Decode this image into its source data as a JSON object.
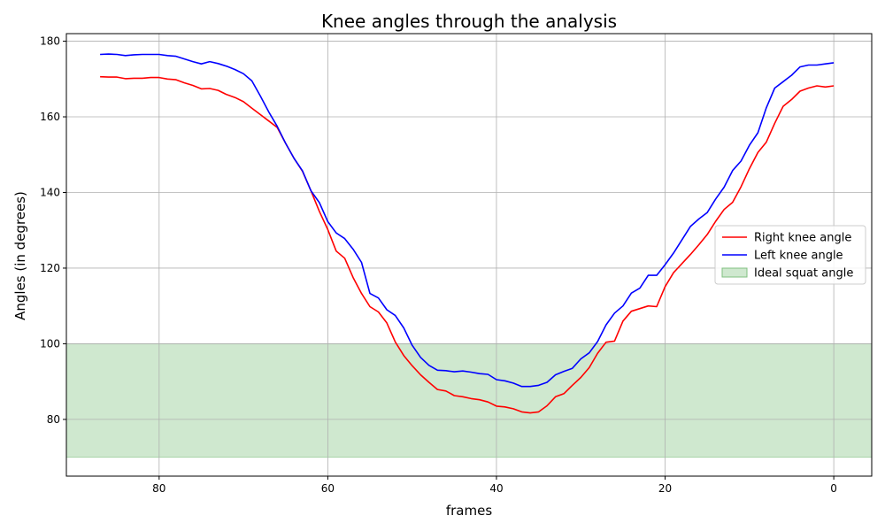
{
  "chart_data": {
    "type": "line",
    "title": "Knee angles through the analysis",
    "xlabel": "frames",
    "ylabel": "Angles (in degrees)",
    "xlim": [
      91,
      -4.5
    ],
    "ylim": [
      65,
      182
    ],
    "x_inverted": true,
    "grid": true,
    "legend_position": "center-right",
    "xticks": [
      80,
      60,
      40,
      20,
      0
    ],
    "yticks": [
      80,
      100,
      120,
      140,
      160,
      180
    ],
    "band": {
      "name": "Ideal squat angle",
      "y_min": 70,
      "y_max": 100,
      "color": "#a8d5a8"
    },
    "series": [
      {
        "name": "Right knee angle",
        "color": "#ff0000",
        "x": [
          87,
          86,
          85,
          84,
          83,
          82,
          81,
          80,
          79,
          78,
          77,
          76,
          75,
          74,
          73,
          72,
          71,
          70,
          69,
          68,
          67,
          66,
          65,
          64,
          63,
          62,
          61,
          60,
          59,
          58,
          57,
          56,
          55,
          54,
          53,
          52,
          51,
          50,
          49,
          48,
          47,
          46,
          45,
          44,
          43,
          42,
          41,
          40,
          39,
          38,
          37,
          36,
          35,
          34,
          33,
          32,
          31,
          30,
          29,
          28,
          27,
          26,
          25,
          24,
          23,
          22,
          21,
          20,
          19,
          18,
          17,
          16,
          15,
          14,
          13,
          12,
          11,
          10,
          9,
          8,
          7,
          6,
          5,
          4,
          3,
          2,
          1,
          0
        ],
        "y": [
          170.6,
          170.5,
          170.5,
          170.1,
          170.2,
          170.2,
          170.4,
          170.4,
          170.0,
          169.8,
          169.0,
          168.3,
          167.4,
          167.5,
          167.0,
          165.9,
          165.1,
          164.0,
          162.3,
          160.6,
          158.9,
          157.2,
          153.0,
          149.0,
          145.6,
          140.5,
          135.0,
          130.2,
          124.5,
          122.6,
          117.5,
          113.3,
          109.8,
          108.4,
          105.5,
          100.5,
          96.9,
          94.2,
          91.8,
          89.8,
          87.9,
          87.5,
          86.3,
          86.0,
          85.5,
          85.2,
          84.6,
          83.5,
          83.3,
          82.8,
          82.0,
          81.7,
          82.0,
          83.6,
          86.0,
          86.8,
          89.0,
          91.1,
          93.7,
          97.5,
          100.4,
          100.7,
          106.0,
          108.6,
          109.3,
          110.0,
          109.8,
          115.1,
          118.8,
          121.2,
          123.6,
          126.2,
          128.9,
          132.4,
          135.5,
          137.4,
          141.5,
          146.3,
          150.6,
          153.3,
          158.3,
          162.8,
          164.6,
          166.8,
          167.6,
          168.2,
          167.9,
          168.2
        ]
      },
      {
        "name": "Left knee angle",
        "color": "#0000ff",
        "x": [
          87,
          86,
          85,
          84,
          83,
          82,
          81,
          80,
          79,
          78,
          77,
          76,
          75,
          74,
          73,
          72,
          71,
          70,
          69,
          68,
          67,
          66,
          65,
          64,
          63,
          62,
          61,
          60,
          59,
          58,
          57,
          56,
          55,
          54,
          53,
          52,
          51,
          50,
          49,
          48,
          47,
          46,
          45,
          44,
          43,
          42,
          41,
          40,
          39,
          38,
          37,
          36,
          35,
          34,
          33,
          32,
          31,
          30,
          29,
          28,
          27,
          26,
          25,
          24,
          23,
          22,
          21,
          20,
          19,
          18,
          17,
          16,
          15,
          14,
          13,
          12,
          11,
          10,
          9,
          8,
          7,
          6,
          5,
          4,
          3,
          2,
          1,
          0
        ],
        "y": [
          176.5,
          176.6,
          176.5,
          176.2,
          176.4,
          176.5,
          176.5,
          176.5,
          176.2,
          176.0,
          175.3,
          174.6,
          174.0,
          174.6,
          174.1,
          173.4,
          172.5,
          171.4,
          169.5,
          165.5,
          161.3,
          157.5,
          153.0,
          149.0,
          145.7,
          140.5,
          137.3,
          132.3,
          129.3,
          127.8,
          125.0,
          121.5,
          113.3,
          112.1,
          109.0,
          107.5,
          104.2,
          99.6,
          96.4,
          94.3,
          93.0,
          92.9,
          92.6,
          92.8,
          92.5,
          92.1,
          91.9,
          90.5,
          90.2,
          89.6,
          88.7,
          88.7,
          89.0,
          89.8,
          91.8,
          92.7,
          93.5,
          96.0,
          97.6,
          100.6,
          105.0,
          108.1,
          110.0,
          113.4,
          114.7,
          118.1,
          118.1,
          120.9,
          124.0,
          127.5,
          131.0,
          133.0,
          134.7,
          138.3,
          141.4,
          145.8,
          148.3,
          152.5,
          155.8,
          162.4,
          167.6,
          169.3,
          171.0,
          173.2,
          173.7,
          173.7,
          174.0,
          174.3
        ]
      }
    ]
  }
}
